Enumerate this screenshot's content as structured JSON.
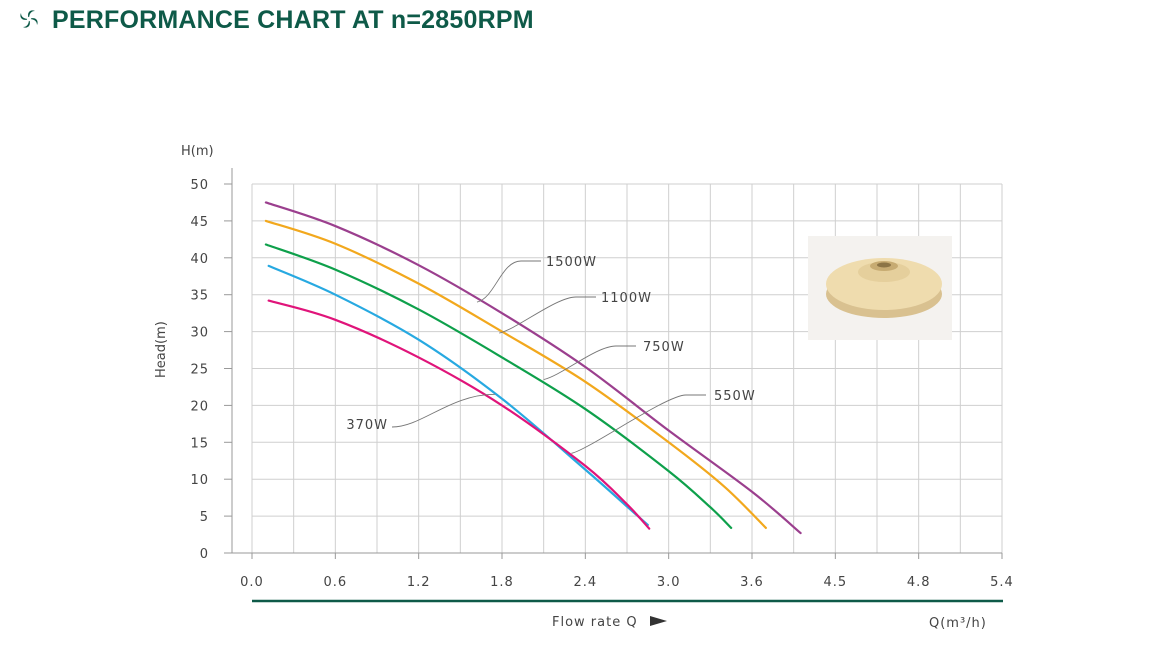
{
  "header": {
    "title": "PERFORMANCE CHART AT n=2850RPM",
    "icon": "swirl-icon"
  },
  "colors": {
    "accent": "#0e5a48",
    "grid": "#cfcfcf"
  },
  "image": {
    "icon": "impeller-photo"
  },
  "footer": {
    "flow_label": "Flow rate Q",
    "unit_label": "Q(m³/h)"
  },
  "chart_data": {
    "type": "line",
    "title": "PERFORMANCE CHART AT n=2850RPM",
    "xlabel": "Flow rate Q",
    "xunit": "Q(m³/h)",
    "ylabel": "Head(m)",
    "yunit": "H(m)",
    "xlim": [
      0,
      5.4
    ],
    "ylim": [
      0,
      50
    ],
    "xticks": [
      "0.0",
      "0.6",
      "1.2",
      "1.8",
      "2.4",
      "3.0",
      "3.6",
      "4.5",
      "4.8",
      "5.4"
    ],
    "yticks": [
      "0",
      "5",
      "10",
      "15",
      "20",
      "25",
      "30",
      "35",
      "40",
      "45",
      "50"
    ],
    "grid": true,
    "series": [
      {
        "name": "1500W",
        "color": "#9b3f8e",
        "x": [
          0.1,
          0.6,
          1.2,
          1.8,
          2.4,
          3.0,
          3.6,
          3.95
        ],
        "y": [
          47.5,
          44.3,
          39.0,
          32.5,
          25.2,
          16.6,
          8.3,
          2.7
        ]
      },
      {
        "name": "1100W",
        "color": "#f2a81d",
        "x": [
          0.1,
          0.6,
          1.2,
          1.8,
          2.4,
          3.0,
          3.4,
          3.7
        ],
        "y": [
          45.0,
          41.9,
          36.5,
          30.0,
          23.2,
          15.0,
          9.0,
          3.4
        ]
      },
      {
        "name": "750W",
        "color": "#0ea04b",
        "x": [
          0.1,
          0.6,
          1.2,
          1.8,
          2.4,
          3.0,
          3.3,
          3.45
        ],
        "y": [
          41.8,
          38.4,
          33.0,
          26.5,
          19.5,
          11.1,
          6.2,
          3.4
        ]
      },
      {
        "name": "550W",
        "color": "#27a9e1",
        "x": [
          0.12,
          0.6,
          1.2,
          1.8,
          2.4,
          2.7,
          2.85
        ],
        "y": [
          38.9,
          35.0,
          28.9,
          20.9,
          11.3,
          6.3,
          3.8
        ]
      },
      {
        "name": "370W",
        "color": "#e0147a",
        "x": [
          0.12,
          0.6,
          1.2,
          1.8,
          2.4,
          2.7,
          2.86
        ],
        "y": [
          34.2,
          31.6,
          26.5,
          20.0,
          11.8,
          6.6,
          3.3
        ]
      }
    ]
  }
}
